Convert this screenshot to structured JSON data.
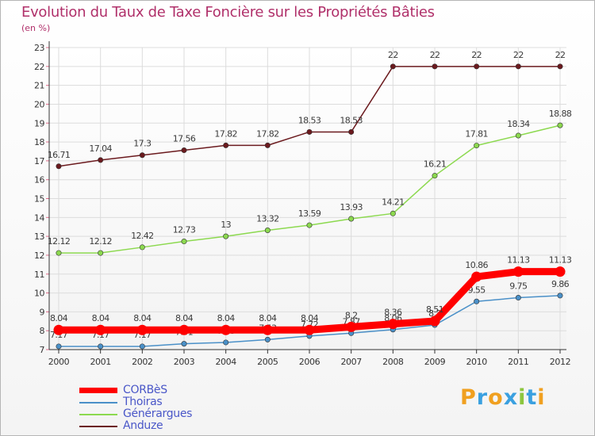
{
  "header": {
    "title": "Evolution du Taux de Taxe Foncière sur les Propriétés Bâties",
    "unit": "(en %)"
  },
  "logo": {
    "letters": [
      "P",
      "r",
      "o",
      "x",
      "i",
      "t",
      "i"
    ],
    "colors": [
      "#f0a020",
      "#3aa0e0",
      "#f0a020",
      "#3aa0e0",
      "#8cc63e",
      "#3aa0e0",
      "#f0a020"
    ]
  },
  "chart_data": {
    "type": "line",
    "title": "Evolution du Taux de Taxe Foncière sur les Propriétés Bâties",
    "ylabel": "(en %)",
    "xlabel": "",
    "x": [
      "2000",
      "2001",
      "2002",
      "2003",
      "2004",
      "2005",
      "2006",
      "2007",
      "2008",
      "2009",
      "2010",
      "2011",
      "2012"
    ],
    "ylim": [
      7,
      23
    ],
    "yticks": [
      "7",
      "8",
      "9",
      "10",
      "11",
      "12",
      "13",
      "14",
      "15",
      "16",
      "17",
      "18",
      "19",
      "20",
      "21",
      "22",
      "23"
    ],
    "grid": true,
    "legend_position": "bottom-left",
    "series": [
      {
        "name": "Anduze",
        "color": "#6b1a1e",
        "values": [
          16.71,
          17.04,
          17.3,
          17.56,
          17.82,
          17.82,
          18.53,
          18.53,
          22,
          22,
          22,
          22,
          22
        ],
        "labels": [
          "16.71",
          "17.04",
          "17.3",
          "17.56",
          "17.82",
          "17.82",
          "18.53",
          "18.53",
          "22",
          "22",
          "22",
          "22",
          "22"
        ]
      },
      {
        "name": "Générargues",
        "color": "#8cd94f",
        "values": [
          12.12,
          12.12,
          12.42,
          12.73,
          13,
          13.32,
          13.59,
          13.93,
          14.21,
          16.21,
          17.81,
          18.34,
          18.88
        ],
        "labels": [
          "12.12",
          "12.12",
          "12.42",
          "12.73",
          "13",
          "13.32",
          "13.59",
          "13.93",
          "14.21",
          "16.21",
          "17.81",
          "18.34",
          "18.88"
        ]
      },
      {
        "name": "Thoiras",
        "color": "#4a90c8",
        "values": [
          7.17,
          7.17,
          7.17,
          7.31,
          7.38,
          7.53,
          7.72,
          7.87,
          8.06,
          8.3,
          9.55,
          9.75,
          9.86
        ],
        "labels": [
          "7.17",
          "7.17",
          "7.17",
          "7.31",
          "7.38",
          "7.53",
          "7.72",
          "7.87",
          "8.06",
          "8.3",
          "9.55",
          "9.75",
          "9.86"
        ]
      },
      {
        "name": "CORBèS",
        "color": "#ff0000",
        "values": [
          8.04,
          8.04,
          8.04,
          8.04,
          8.04,
          8.04,
          8.04,
          8.2,
          8.36,
          8.51,
          10.86,
          11.13,
          11.13
        ],
        "labels": [
          "8.04",
          "8.04",
          "8.04",
          "8.04",
          "8.04",
          "8.04",
          "8.04",
          "8.2",
          "8.36",
          "8.51",
          "10.86",
          "11.13",
          "11.13"
        ]
      }
    ],
    "legend": [
      "CORBèS",
      "Thoiras",
      "Générargues",
      "Anduze"
    ]
  }
}
